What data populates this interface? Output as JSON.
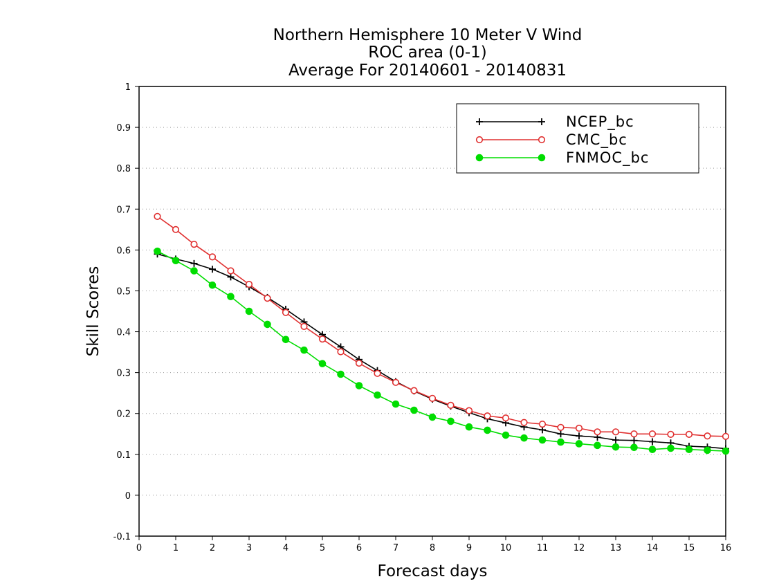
{
  "chart_data": {
    "type": "line",
    "title": "Northern Hemisphere 10 Meter V Wind",
    "subtitle": "ROC area (0-1)",
    "subtitle2": "Average For 20140601 - 20140831",
    "xlabel": "Forecast days",
    "ylabel": "Skill Scores",
    "xlim": [
      0,
      16
    ],
    "ylim": [
      -0.1,
      1
    ],
    "xticks": [
      "0",
      "1",
      "2",
      "3",
      "4",
      "5",
      "6",
      "7",
      "8",
      "9",
      "10",
      "11",
      "12",
      "13",
      "14",
      "15",
      "16"
    ],
    "yticks": [
      "-0.1",
      "0",
      "0.1",
      "0.2",
      "0.3",
      "0.4",
      "0.5",
      "0.6",
      "0.7",
      "0.8",
      "0.9",
      "1"
    ],
    "grid": true,
    "legend_position": "top-right",
    "x": [
      0.5,
      1,
      1.5,
      2,
      2.5,
      3,
      3.5,
      4,
      4.5,
      5,
      5.5,
      6,
      6.5,
      7,
      7.5,
      8,
      8.5,
      9,
      9.5,
      10,
      10.5,
      11,
      11.5,
      12,
      12.5,
      13,
      13.5,
      14,
      14.5,
      15,
      15.5,
      16
    ],
    "series": [
      {
        "name": "NCEP_bc",
        "color": "#000000",
        "marker": "plus",
        "values": [
          0.59,
          0.578,
          0.567,
          0.553,
          0.534,
          0.51,
          0.484,
          0.455,
          0.424,
          0.393,
          0.363,
          0.332,
          0.305,
          0.278,
          0.255,
          0.235,
          0.218,
          0.202,
          0.187,
          0.177,
          0.167,
          0.16,
          0.15,
          0.145,
          0.142,
          0.135,
          0.134,
          0.131,
          0.128,
          0.12,
          0.118,
          0.114
        ]
      },
      {
        "name": "CMC_bc",
        "color": "#e03030",
        "marker": "open-circle",
        "values": [
          0.682,
          0.65,
          0.614,
          0.583,
          0.549,
          0.516,
          0.482,
          0.447,
          0.413,
          0.382,
          0.351,
          0.323,
          0.298,
          0.276,
          0.256,
          0.237,
          0.22,
          0.207,
          0.194,
          0.189,
          0.178,
          0.174,
          0.166,
          0.164,
          0.155,
          0.155,
          0.15,
          0.15,
          0.149,
          0.149,
          0.145,
          0.144
        ]
      },
      {
        "name": "FNMOC_bc",
        "color": "#00dd00",
        "marker": "filled-circle",
        "values": [
          0.597,
          0.574,
          0.549,
          0.514,
          0.486,
          0.45,
          0.418,
          0.381,
          0.355,
          0.322,
          0.296,
          0.268,
          0.245,
          0.223,
          0.208,
          0.191,
          0.181,
          0.167,
          0.159,
          0.147,
          0.14,
          0.135,
          0.13,
          0.126,
          0.122,
          0.118,
          0.117,
          0.112,
          0.115,
          0.112,
          0.11,
          0.108
        ]
      }
    ]
  }
}
